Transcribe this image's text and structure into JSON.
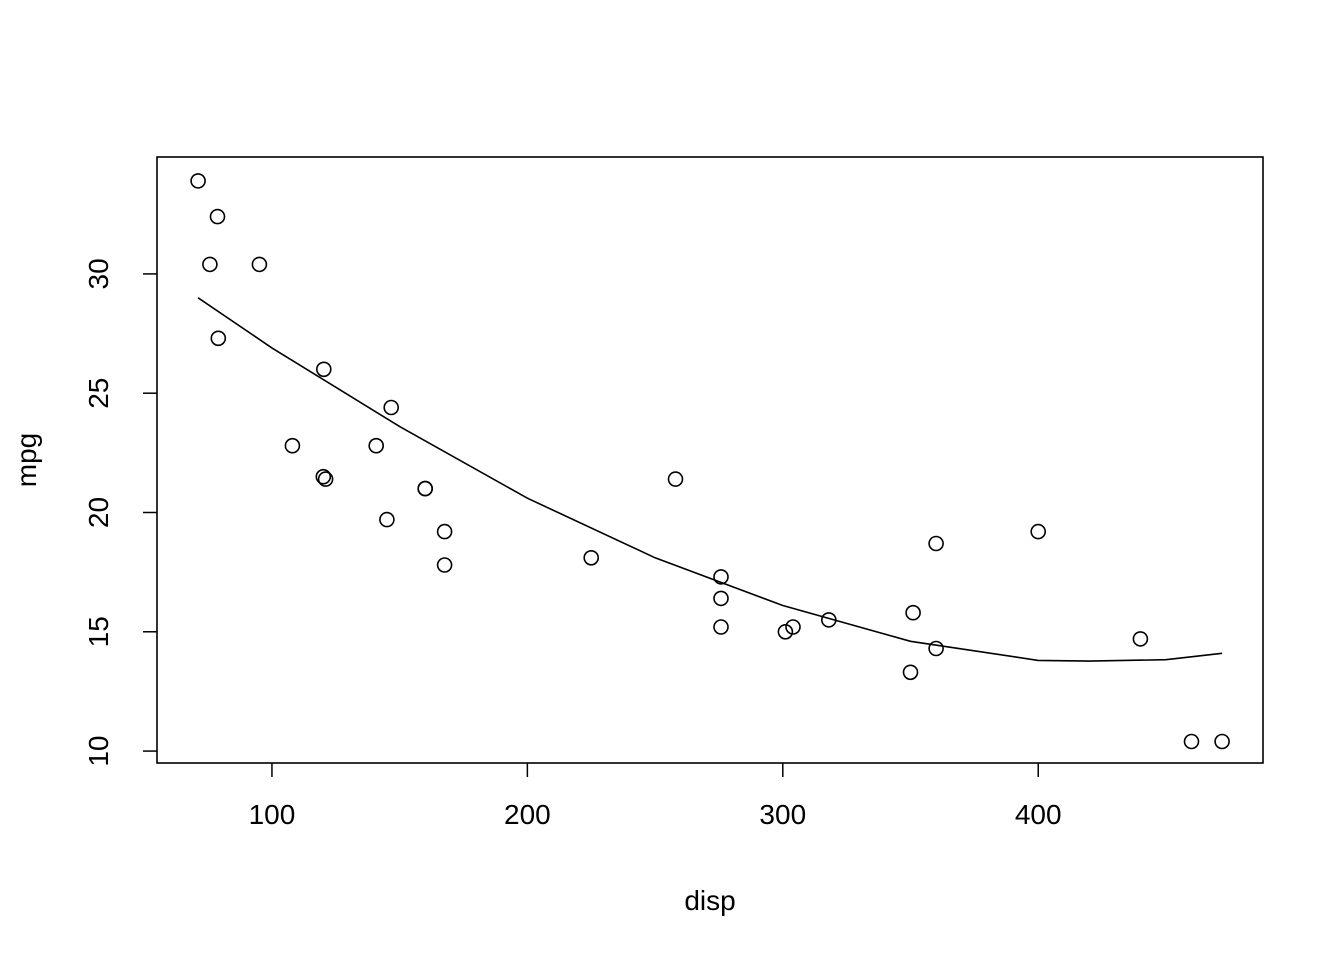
{
  "chart_data": {
    "type": "scatter",
    "title": "",
    "xlabel": "disp",
    "ylabel": "mpg",
    "xlim": [
      55,
      488
    ],
    "ylim": [
      9.5,
      34.9
    ],
    "xticks": [
      100,
      200,
      300,
      400
    ],
    "yticks": [
      10,
      15,
      20,
      25,
      30
    ],
    "grid": false,
    "legend": "none",
    "series": [
      {
        "type": "scatter",
        "marker": "open-circle",
        "x": [
          71.1,
          78.7,
          75.7,
          95.1,
          79.0,
          120.3,
          108.0,
          140.8,
          146.7,
          120.1,
          121.0,
          160.0,
          160.0,
          145.0,
          167.6,
          167.6,
          225.0,
          258.0,
          275.8,
          275.8,
          275.8,
          301.0,
          304.0,
          318.0,
          350.0,
          351.0,
          360.0,
          360.0,
          400.0,
          440.0,
          460.0,
          472.0
        ],
        "y": [
          33.9,
          32.4,
          30.4,
          30.4,
          27.3,
          26.0,
          22.8,
          22.8,
          24.4,
          21.5,
          21.4,
          21.0,
          21.0,
          19.7,
          19.2,
          17.8,
          18.1,
          21.4,
          17.3,
          16.4,
          15.2,
          15.0,
          15.2,
          15.5,
          13.3,
          15.8,
          18.7,
          14.3,
          19.2,
          14.7,
          10.4,
          10.4
        ]
      },
      {
        "type": "line",
        "x": [
          71.1,
          100,
          150,
          200,
          250,
          300,
          350,
          400,
          420,
          450,
          472
        ],
        "y": [
          29.0,
          26.9,
          23.6,
          20.6,
          18.1,
          16.1,
          14.6,
          13.8,
          13.77,
          13.83,
          14.1
        ]
      }
    ]
  }
}
